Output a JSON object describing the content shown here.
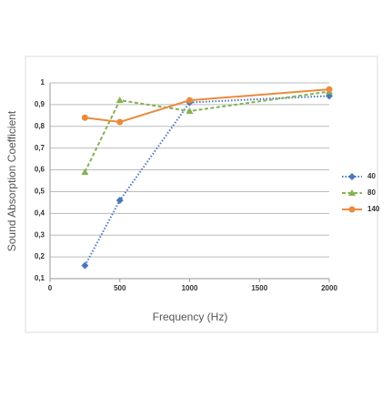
{
  "chart_data": {
    "type": "line",
    "x_label": "Frequency (Hz)",
    "y_label": "Sound Absorption Coefficient",
    "x": [
      250,
      500,
      1000,
      2000
    ],
    "series": [
      {
        "name": "40",
        "color": "#4a76bd",
        "dash": "dotted",
        "marker": "diamond",
        "values": [
          0.16,
          0.46,
          0.91,
          0.94
        ]
      },
      {
        "name": "80",
        "color": "#86b153",
        "dash": "dashed",
        "marker": "triangle",
        "values": [
          0.59,
          0.92,
          0.87,
          0.96
        ]
      },
      {
        "name": "140",
        "color": "#ea8a3d",
        "dash": "solid",
        "marker": "circle",
        "values": [
          0.84,
          0.82,
          0.92,
          0.97
        ]
      }
    ],
    "xlim": [
      0,
      2000
    ],
    "xticks": [
      0,
      500,
      1000,
      1500,
      2000
    ],
    "ylim": [
      0.1,
      1
    ],
    "yticks": [
      {
        "value": 0.1,
        "label": "0,1"
      },
      {
        "value": 0.2,
        "label": "0,2"
      },
      {
        "value": 0.3,
        "label": "0,3"
      },
      {
        "value": 0.4,
        "label": "0,4"
      },
      {
        "value": 0.5,
        "label": "0,5"
      },
      {
        "value": 0.6,
        "label": "0,6"
      },
      {
        "value": 0.7,
        "label": "0,7"
      },
      {
        "value": 0.8,
        "label": "0,8"
      },
      {
        "value": 0.9,
        "label": "0,9"
      },
      1
    ],
    "grid": true,
    "legend": "right"
  }
}
